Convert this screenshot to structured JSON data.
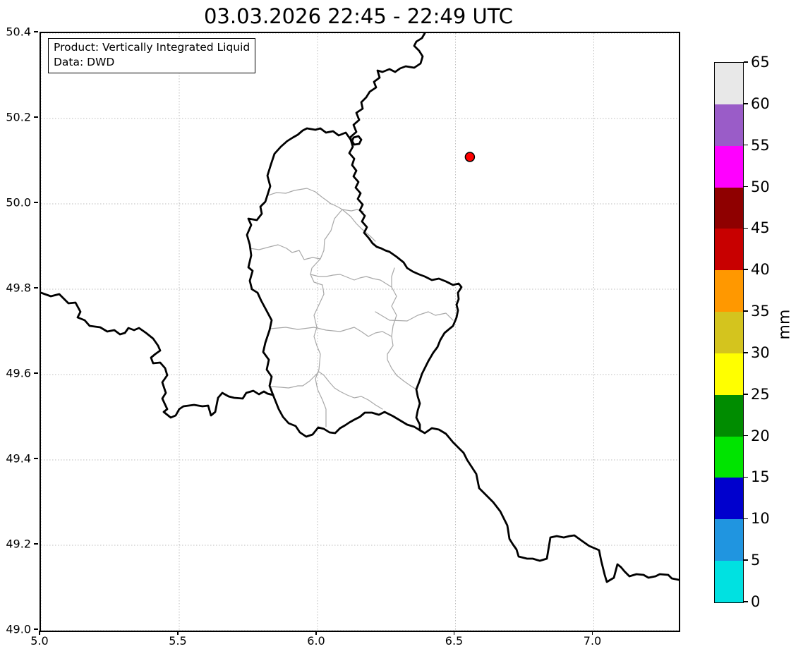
{
  "title": "03.03.2026 22:45 - 22:49 UTC",
  "info_box": {
    "line1": "Product: Vertically Integrated Liquid",
    "line2": "Data: DWD"
  },
  "axes": {
    "x": {
      "tick_labels": [
        "5.0",
        "5.5",
        "6.0",
        "6.5",
        "7.0"
      ],
      "range": [
        5.0,
        7.305
      ],
      "grid": "dotted"
    },
    "y": {
      "tick_labels": [
        "50.4",
        "50.2",
        "50.0",
        "49.8",
        "49.6",
        "49.4",
        "49.2",
        "49.0"
      ],
      "range": [
        49.0,
        50.4
      ],
      "grid": "dotted"
    }
  },
  "colorbar": {
    "unit": "mm",
    "tick_labels_top_to_bottom": [
      "65",
      "60",
      "55",
      "50",
      "45",
      "40",
      "35",
      "30",
      "25",
      "20",
      "15",
      "10",
      "5",
      "0"
    ],
    "segments_bottom_to_top": [
      {
        "from": 0,
        "to": 5,
        "color": "#00E1E1"
      },
      {
        "from": 5,
        "to": 10,
        "color": "#2095E0"
      },
      {
        "from": 10,
        "to": 15,
        "color": "#0000CD"
      },
      {
        "from": 15,
        "to": 20,
        "color": "#00E400"
      },
      {
        "from": 20,
        "to": 25,
        "color": "#008C00"
      },
      {
        "from": 25,
        "to": 30,
        "color": "#FFFF00"
      },
      {
        "from": 30,
        "to": 35,
        "color": "#D4C41E"
      },
      {
        "from": 35,
        "to": 40,
        "color": "#FF9800"
      },
      {
        "from": 40,
        "to": 45,
        "color": "#C80000"
      },
      {
        "from": 45,
        "to": 50,
        "color": "#8F0000"
      },
      {
        "from": 50,
        "to": 55,
        "color": "#FF00FF"
      },
      {
        "from": 55,
        "to": 60,
        "color": "#9A5CC8"
      },
      {
        "from": 60,
        "to": 65,
        "color": "#E8E8E8"
      }
    ]
  },
  "marker": {
    "lon": 6.55,
    "lat": 50.11,
    "fill": "#FF0000",
    "edge": "#000000",
    "radius": 6.5
  },
  "map": {
    "national_border_color": "#000000",
    "regional_border_color": "#A8A8A8",
    "national_borders": [
      "0,368 14,373 26,370 39,383 49,382 56,395 52,403 62,407 69,415 84,417 94,423 104,421 112,427 119,425 124,418 132,421 139,418 149,425 159,433 166,443 169,450 162,455 156,460 159,468 169,467 176,475 179,485 172,495 177,510 172,518 179,533 174,537 184,545 191,542 196,533 202,529 217,527 229,529 237,528 241,542 247,537 251,517 257,510 266,515 274,517 286,518 291,510 301,507 309,512 316,508 321,511 329,513",
      "377,135 389,137 396,135 404,141 414,139 422,145 432,141 439,151 442,161 437,170 444,178 441,187 447,195 443,203 450,211 446,219 453,227 449,235 456,243 452,251 459,259 455,267 462,275 458,283 465,291 470,298 476,303 482,305 488,308 494,310 504,317 514,325 519,333 527,338 536,342 544,345 554,350 564,348 574,352 584,357 592,355 596,360 591,368 592,377 589,385 591,393 589,403 587,408 584,415 572,425 566,435 562,445 556,453 549,465 544,475 540,483 537,492 532,505 534,515 537,525 534,535 532,545 537,555 537,563 529,558 519,555 509,549 499,543 487,537 479,541 469,538 459,538 452,544 444,548 437,552 431,556 424,560 417,567 409,566 401,561 393,559 385,569 376,572 367,566 361,557 351,553 343,544 337,533 333,523 329,513 324,500 327,487 320,477 323,463 315,452 318,439 324,421 327,407 319,392 312,379 307,368 299,363 296,351 300,337 294,332 298,315 296,300 292,286 298,272 294,263 306,265 313,256 311,246 318,239 325,217 321,202 326,186 331,171 340,161 349,153 357,148 364,144 371,138 377,135",
      "544,0 540,7 532,12 529,18 536,25 541,33 538,43 529,49 517,47 509,50 502,55 494,51 484,55 477,53 480,63 472,69 475,77 466,83 461,91 454,98 456,107 447,113 451,123 443,130 447,140 439,147 439,151",
      "443,148 450,146 454,151 451,157 444,158 441,153 443,148",
      "537,563 544,567 554,560 564,562 574,568 584,580 599,595 604,605 617,625 621,645 631,655 641,665 651,678 661,698 664,717 669,725 674,732 677,742 689,745 697,745 707,748 717,745 719,733 722,715 731,713 741,715 749,713 756,712 767,720 777,727 784,730 791,733 794,748 799,768 802,778 812,772 817,753 822,757 827,763 834,770 844,767 854,768 861,772 871,770 877,767 889,768 894,773 904,775"
    ],
    "regional_borders": [
      "322,230 334,226 347,227 359,223 371,221 377,220 389,225 399,233 406,238 411,242 414,243 422,247 427,250 440,252 448,250 457,253",
      "427,250 416,263 411,280 402,293 401,308 396,320 384,333 382,342 387,353 399,357 401,370 394,385 387,400 391,417 387,430 391,443 396,455 394,477 389,490 392,505 399,520 404,533 404,558",
      "296,305 309,307 324,303 336,300 348,305 356,311 366,308 373,321 385,318 396,320",
      "427,250 439,260 447,270 454,277 461,283 468,289 474,295",
      "382,342 394,345 404,345 414,343 424,342 434,346 444,350 452,347 461,345 471,348 481,350 489,355 497,360",
      "501,333 497,345 497,360 504,373 497,387 504,400 499,415 497,430 499,443 491,455 491,463 497,475 504,485 514,493 524,500 532,505",
      "325,419 347,417 364,420 387,417 404,421 424,423 444,417 454,423 464,430 474,425 484,423 497,430",
      "326,501 340,502 351,503 364,500 371,500 381,493 394,480 401,485 409,495 416,503 424,508 434,513 444,517 454,515 464,520 474,527 484,533",
      "474,395 494,407 519,408 534,400 549,395 559,400 574,397 584,407"
    ]
  }
}
